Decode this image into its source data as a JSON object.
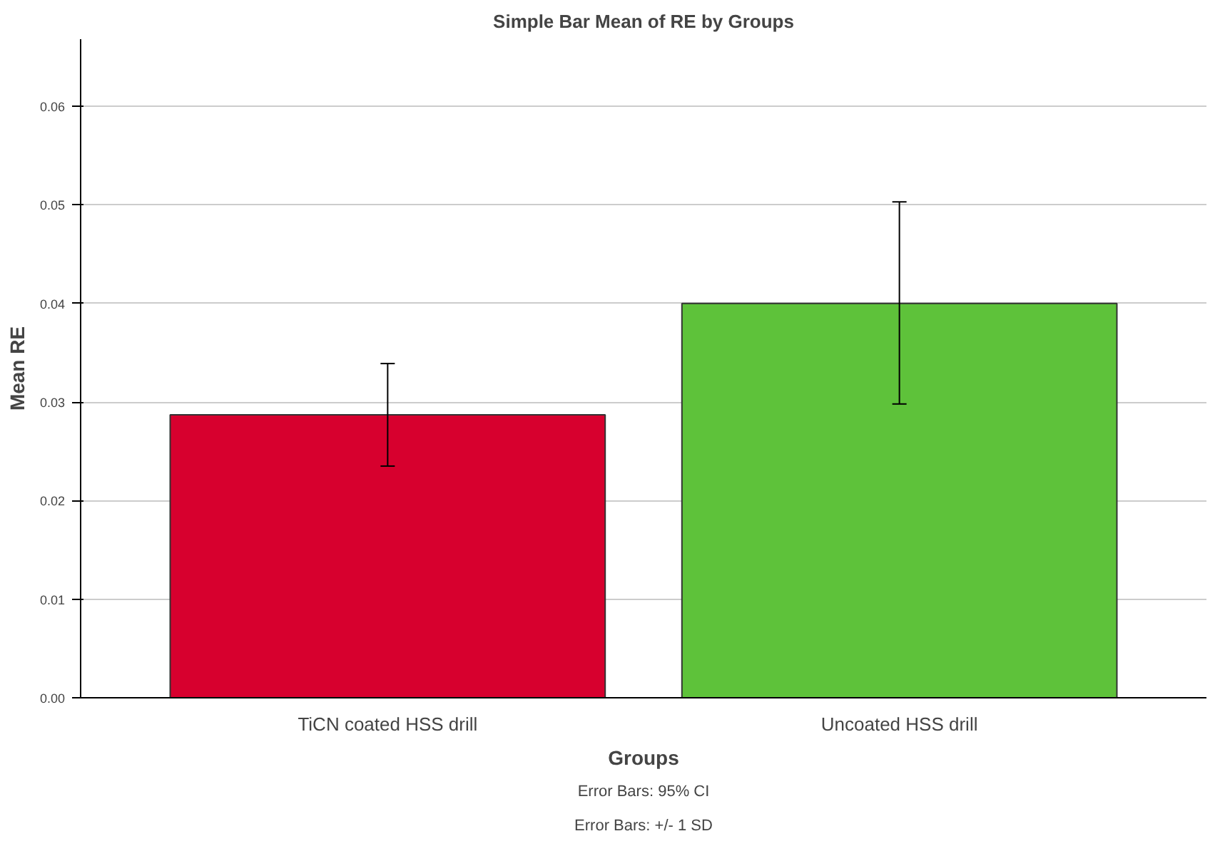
{
  "chart_data": {
    "type": "bar",
    "title": "Simple Bar Mean of RE by Groups",
    "xlabel": "Groups",
    "ylabel": "Mean RE",
    "categories": [
      "TiCN coated HSS drill",
      "Uncoated HSS drill"
    ],
    "values": [
      0.0287,
      0.04
    ],
    "colors": [
      "#d7002e",
      "#5ec23a"
    ],
    "errors": [
      [
        0.0235,
        0.0339
      ],
      [
        0.0298,
        0.0503
      ]
    ],
    "ylim": [
      0,
      0.0668
    ],
    "yticks": [
      {
        "value": 0,
        "label": "0.00"
      },
      {
        "value": 0.01,
        "label": "0.01"
      },
      {
        "value": 0.02,
        "label": "0.02"
      },
      {
        "value": 0.03,
        "label": "0.03"
      },
      {
        "value": 0.04,
        "label": "0.04"
      },
      {
        "value": 0.05,
        "label": "0.05"
      },
      {
        "value": 0.06,
        "label": "0.06"
      }
    ],
    "grid": "y",
    "annotations": [
      "Error Bars: 95% CI",
      "Error Bars: +/- 1 SD"
    ]
  }
}
